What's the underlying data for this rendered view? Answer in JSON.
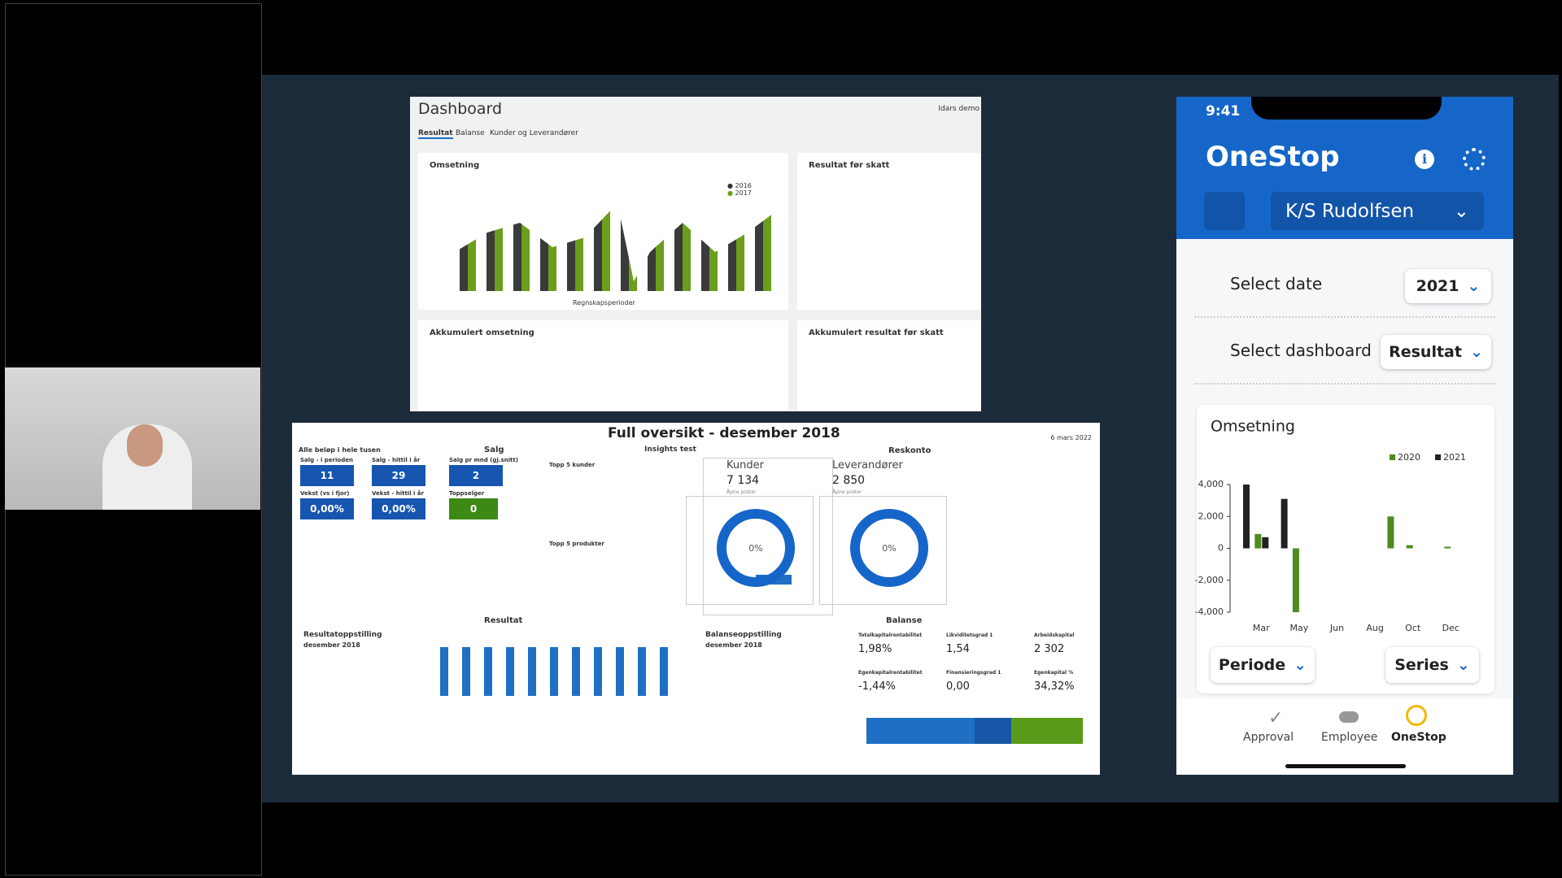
{
  "dashboard": {
    "title": "Dashboard",
    "tabs": [
      "Resultat",
      "Balanse",
      "Kunder og Leverandører"
    ],
    "user": "Idars demo",
    "panels": [
      "Omsetning",
      "Resultat før skatt",
      "Akkumulert omsetning",
      "Akkumulert resultat før skatt"
    ],
    "legend": [
      "2016",
      "2017"
    ],
    "x_title": "Regnskapsperioder"
  },
  "overview": {
    "title": "Full oversikt -  desember 2018",
    "date": "6 mars 2022",
    "note": "Alle beløp i hele tusen",
    "sections": [
      "Salg",
      "Insights test",
      "Reskonto",
      "Resultat",
      "Balanse"
    ],
    "kpis": [
      {
        "label": "Salg - i perioden",
        "value": "11"
      },
      {
        "label": "Salg - hittil i år",
        "value": "29"
      },
      {
        "label": "Salg pr mnd (gj.snitt)",
        "value": "2"
      },
      {
        "label": "Vekst (vs i fjor)",
        "value": "0,00%"
      },
      {
        "label": "Vekst - hittil i år",
        "value": "0,00%"
      },
      {
        "label": "Toppselger",
        "value": "0"
      }
    ],
    "lists": [
      "Topp 5 kunder",
      "Topp 5 produkter"
    ],
    "reskonto": [
      {
        "label": "Kunder",
        "value": "7 134",
        "sub": "Åpne poster",
        "donut": "0%"
      },
      {
        "label": "Leverandører",
        "value": "2 850",
        "sub": "Åpne poster",
        "donut": "0%"
      }
    ],
    "tables": [
      {
        "title": "Resultatoppstilling",
        "sub": "desember 2018"
      },
      {
        "title": "Balanseoppstilling",
        "sub": "desember 2018"
      }
    ],
    "ratios": [
      {
        "label": "Totalkapitalrentabilitet",
        "value": "1,98%"
      },
      {
        "label": "Likviditetsgrad 1",
        "value": "1,54"
      },
      {
        "label": "Arbeidskapital",
        "value": "2 302"
      },
      {
        "label": "Egenkapitalrentabilitet",
        "value": "-1,44%"
      },
      {
        "label": "Finansieringsgrad 1",
        "value": "0,00"
      },
      {
        "label": "Egenkapital %",
        "value": "34,32%"
      }
    ]
  },
  "phone": {
    "time": "9:41",
    "app": "OneStop",
    "company": "K/S Rudolfsen",
    "date_label": "Select date",
    "date_value": "2021",
    "dash_label": "Select dashboard",
    "dash_value": "Resultat",
    "buttons": [
      "Periode",
      "Series"
    ],
    "nav": [
      "Approval",
      "Employee",
      "OneStop"
    ],
    "chart": {
      "type": "bar",
      "title": "Omsetning",
      "categories": [
        null,
        "Mar",
        null,
        "May",
        null,
        "Jun",
        null,
        "Aug",
        null,
        "Oct",
        null,
        "Dec"
      ],
      "series": [
        {
          "name": "2020",
          "color": "#4e8a1e",
          "values": [
            0,
            900,
            0,
            -4000,
            0,
            0,
            0,
            0,
            2000,
            200,
            0,
            100
          ]
        },
        {
          "name": "2021",
          "color": "#222222",
          "values": [
            4000,
            700,
            3100,
            0,
            0,
            0,
            0,
            0,
            0,
            0,
            0,
            0
          ]
        }
      ],
      "ylim": [
        -4000,
        4000
      ],
      "yticks": [
        {
          "value": 4000,
          "label": "4,000"
        },
        {
          "value": 2000,
          "label": "2,000"
        },
        0,
        {
          "value": -2000,
          "label": "-2,000"
        },
        {
          "value": -4000,
          "label": "-4,000"
        }
      ]
    }
  }
}
